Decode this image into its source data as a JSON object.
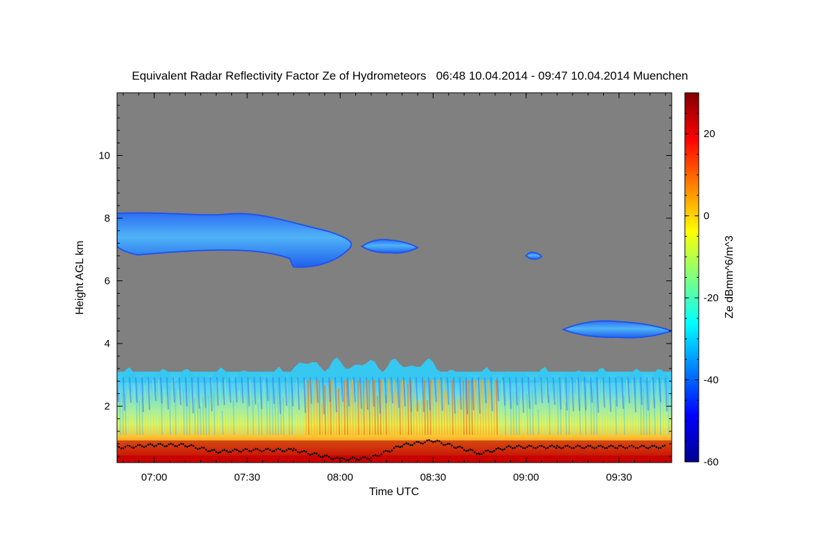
{
  "chart_data": {
    "type": "heatmap",
    "title": "Equivalent Radar Reflectivity Factor Ze of Hydrometeors   06:48 10.04.2014 - 09:47 10.04.2014 Muenchen",
    "xlabel": "Time UTC",
    "ylabel": "Height AGL km",
    "xlim": [
      "06:48",
      "09:47"
    ],
    "ylim": [
      0.2,
      12
    ],
    "x_ticks": [
      "07:00",
      "07:30",
      "08:00",
      "08:30",
      "09:00",
      "09:30"
    ],
    "y_ticks": [
      2,
      4,
      6,
      8,
      10
    ],
    "colorbar": {
      "label": "Ze dBmm^6/m^3",
      "range": [
        -60,
        30
      ],
      "ticks": [
        20,
        0,
        -20,
        -40,
        -60
      ],
      "colormap": "jet"
    },
    "background_color": "#808080",
    "features": [
      {
        "label": "upper cloud layer",
        "time_start": "06:48",
        "time_end": "08:05",
        "height_base_km": 6.4,
        "height_top_km": 8.2,
        "ze_dbz": -35
      },
      {
        "label": "cloud fragment",
        "time_start": "08:07",
        "time_end": "08:25",
        "height_base_km": 6.9,
        "height_top_km": 7.3,
        "ze_dbz": -36
      },
      {
        "label": "cloud fragment",
        "time_start": "09:00",
        "time_end": "09:05",
        "height_base_km": 6.7,
        "height_top_km": 6.9,
        "ze_dbz": -36
      },
      {
        "label": "mid-level cloud layer",
        "time_start": "09:12",
        "time_end": "09:47",
        "height_base_km": 4.2,
        "height_top_km": 4.7,
        "ze_dbz": -38
      },
      {
        "label": "precipitation layer",
        "time_start": "06:48",
        "time_end": "09:47",
        "height_base_km": 0.2,
        "height_top_km": 3.5,
        "ze_max_dbz": 30
      }
    ],
    "boundary_line": {
      "description": "black dotted line near ground",
      "points": [
        {
          "time": "06:48",
          "height_km": 0.68
        },
        {
          "time": "07:00",
          "height_km": 0.76
        },
        {
          "time": "07:10",
          "height_km": 0.76
        },
        {
          "time": "07:20",
          "height_km": 0.55
        },
        {
          "time": "07:30",
          "height_km": 0.6
        },
        {
          "time": "07:45",
          "height_km": 0.6
        },
        {
          "time": "08:00",
          "height_km": 0.3
        },
        {
          "time": "08:10",
          "height_km": 0.35
        },
        {
          "time": "08:20",
          "height_km": 0.75
        },
        {
          "time": "08:30",
          "height_km": 0.9
        },
        {
          "time": "08:45",
          "height_km": 0.5
        },
        {
          "time": "08:55",
          "height_km": 0.7
        },
        {
          "time": "09:10",
          "height_km": 0.7
        },
        {
          "time": "09:30",
          "height_km": 0.7
        },
        {
          "time": "09:45",
          "height_km": 0.7
        }
      ]
    }
  }
}
